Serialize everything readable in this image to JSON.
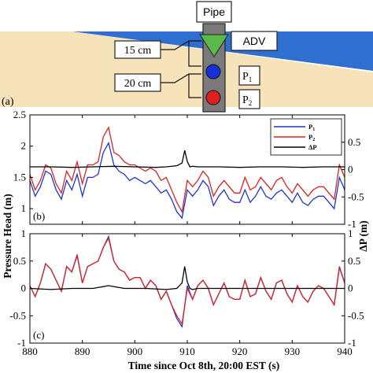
{
  "diagram": {
    "panel_label": "(a)",
    "pipe_label": "Pipe",
    "adv_label": "ADV",
    "dist1_label": "15 cm",
    "dist2_label": "20 cm",
    "p1_label": "P",
    "p1_sub": "1",
    "p2_label": "P",
    "p2_sub": "2",
    "colors": {
      "water": "#2e6fcf",
      "sand": "#f7e3b9",
      "pipe": "#7a7a7a",
      "adv": "#5bb84a",
      "p1": "#1530d8",
      "p2": "#e02020"
    }
  },
  "chart_data": [
    {
      "type": "line",
      "panel_label": "(b)",
      "xlim": [
        880,
        940
      ],
      "ylim": [
        0.75,
        2.5
      ],
      "y2lim": [
        -1,
        1
      ],
      "yticks": [
        "1",
        "1.5",
        "2",
        "2.5"
      ],
      "y2ticks": [
        "-1",
        "-0.5",
        "0",
        "0.5"
      ],
      "legend": "top-right",
      "series": [
        {
          "name": "P",
          "sub": "1",
          "color": "#2233cc",
          "axis": "left",
          "x": [
            880,
            881,
            882,
            883,
            884,
            885,
            886,
            887,
            888,
            889,
            890,
            891,
            892,
            893,
            894,
            895,
            896,
            897,
            898,
            899,
            900,
            901,
            902,
            903,
            904,
            905,
            906,
            907,
            908,
            909,
            910,
            911,
            912,
            913,
            914,
            915,
            916,
            917,
            918,
            919,
            920,
            921,
            922,
            923,
            924,
            925,
            926,
            927,
            928,
            929,
            930,
            931,
            932,
            933,
            934,
            935,
            936,
            937,
            938,
            939,
            940
          ],
          "values": [
            1.45,
            1.2,
            1.35,
            1.6,
            1.55,
            1.3,
            1.15,
            1.45,
            1.3,
            1.55,
            1.2,
            1.5,
            1.5,
            1.55,
            1.9,
            2.05,
            1.7,
            1.6,
            1.55,
            1.45,
            1.5,
            1.45,
            1.4,
            1.45,
            1.35,
            1.25,
            1.3,
            1.15,
            0.95,
            0.85,
            1.3,
            1.2,
            1.3,
            1.45,
            1.35,
            1.05,
            1.2,
            1.3,
            1.15,
            1.1,
            1.1,
            1.3,
            1.1,
            1.2,
            1.35,
            1.2,
            1.15,
            1.25,
            1.3,
            1.2,
            1.1,
            1.25,
            1.1,
            1.05,
            1.15,
            1.2,
            1.2,
            1.1,
            1.0,
            1.5,
            1.3
          ]
        },
        {
          "name": "P",
          "sub": "2",
          "color": "#dd2222",
          "axis": "left",
          "x": [
            880,
            881,
            882,
            883,
            884,
            885,
            886,
            887,
            888,
            889,
            890,
            891,
            892,
            893,
            894,
            895,
            896,
            897,
            898,
            899,
            900,
            901,
            902,
            903,
            904,
            905,
            906,
            907,
            908,
            909,
            910,
            911,
            912,
            913,
            914,
            915,
            916,
            917,
            918,
            919,
            920,
            921,
            922,
            923,
            924,
            925,
            926,
            927,
            928,
            929,
            930,
            931,
            932,
            933,
            934,
            935,
            936,
            937,
            938,
            939,
            940
          ],
          "values": [
            1.55,
            1.3,
            1.45,
            1.7,
            1.65,
            1.4,
            1.25,
            1.6,
            1.45,
            1.75,
            1.4,
            1.7,
            1.7,
            1.75,
            2.15,
            2.3,
            1.9,
            1.85,
            1.75,
            1.7,
            1.7,
            1.65,
            1.6,
            1.65,
            1.6,
            1.45,
            1.5,
            1.3,
            1.1,
            0.95,
            1.45,
            1.35,
            1.45,
            1.6,
            1.5,
            1.2,
            1.35,
            1.45,
            1.35,
            1.25,
            1.25,
            1.5,
            1.3,
            1.35,
            1.5,
            1.4,
            1.3,
            1.45,
            1.5,
            1.35,
            1.25,
            1.4,
            1.3,
            1.2,
            1.3,
            1.35,
            1.35,
            1.25,
            1.15,
            1.7,
            1.5
          ]
        },
        {
          "name": "ΔP",
          "sub": "",
          "color": "#000000",
          "axis": "right",
          "x": [
            880,
            884,
            888,
            892,
            896,
            900,
            904,
            906,
            908,
            909,
            909.5,
            910,
            910.5,
            911,
            912,
            916,
            920,
            924,
            928,
            932,
            936,
            940
          ],
          "values": [
            0.05,
            0.05,
            0.04,
            0.05,
            0.06,
            0.05,
            0.04,
            0.05,
            0.07,
            0.12,
            0.35,
            0.15,
            0.05,
            0.06,
            0.05,
            0.05,
            0.04,
            0.05,
            0.05,
            0.04,
            0.05,
            0.05
          ]
        }
      ]
    },
    {
      "type": "line",
      "panel_label": "(c)",
      "xlim": [
        880,
        940
      ],
      "ylim": [
        -1,
        1
      ],
      "y2lim": [
        -1,
        1
      ],
      "xticks": [
        "880",
        "890",
        "900",
        "910",
        "920",
        "930",
        "940"
      ],
      "yticks": [
        "-1",
        "-0.5",
        "0",
        "0.5",
        "1"
      ],
      "y2ticks": [
        "-1",
        "-0.5",
        "0",
        "0.5",
        "1"
      ],
      "series": [
        {
          "name": "P",
          "sub": "1",
          "color": "#2233cc",
          "axis": "left",
          "x": [
            880,
            881,
            882,
            883,
            884,
            885,
            886,
            887,
            888,
            889,
            890,
            891,
            892,
            893,
            894,
            895,
            896,
            897,
            898,
            899,
            900,
            901,
            902,
            903,
            904,
            905,
            906,
            907,
            908,
            909,
            910,
            911,
            912,
            913,
            914,
            915,
            916,
            917,
            918,
            919,
            920,
            921,
            922,
            923,
            924,
            925,
            926,
            927,
            928,
            929,
            930,
            931,
            932,
            933,
            934,
            935,
            936,
            937,
            938,
            939,
            940
          ],
          "values": [
            0.05,
            -0.15,
            0.1,
            0.45,
            0.35,
            0.15,
            -0.05,
            0.4,
            0.3,
            0.6,
            0.1,
            0.4,
            0.45,
            0.5,
            0.75,
            0.95,
            0.5,
            0.35,
            0.3,
            0.15,
            0.2,
            0.2,
            0.0,
            0.15,
            0.05,
            -0.2,
            -0.05,
            -0.3,
            -0.55,
            -0.7,
            0.05,
            -0.2,
            0.05,
            0.15,
            0.0,
            -0.3,
            -0.1,
            0.1,
            -0.15,
            -0.2,
            -0.2,
            0.15,
            -0.15,
            -0.1,
            0.2,
            -0.05,
            -0.2,
            0.1,
            0.15,
            -0.1,
            -0.25,
            0.05,
            -0.15,
            -0.25,
            -0.05,
            0.05,
            0.0,
            -0.15,
            -0.3,
            0.4,
            0.1
          ]
        },
        {
          "name": "P",
          "sub": "2",
          "color": "#dd2222",
          "axis": "left",
          "x": [
            880,
            881,
            882,
            883,
            884,
            885,
            886,
            887,
            888,
            889,
            890,
            891,
            892,
            893,
            894,
            895,
            896,
            897,
            898,
            899,
            900,
            901,
            902,
            903,
            904,
            905,
            906,
            907,
            908,
            909,
            910,
            911,
            912,
            913,
            914,
            915,
            916,
            917,
            918,
            919,
            920,
            921,
            922,
            923,
            924,
            925,
            926,
            927,
            928,
            929,
            930,
            931,
            932,
            933,
            934,
            935,
            936,
            937,
            938,
            939,
            940
          ],
          "values": [
            0.05,
            -0.15,
            0.1,
            0.45,
            0.35,
            0.15,
            -0.05,
            0.4,
            0.3,
            0.62,
            0.1,
            0.4,
            0.45,
            0.5,
            0.75,
            0.92,
            0.5,
            0.35,
            0.3,
            0.15,
            0.2,
            0.2,
            0.0,
            0.15,
            0.05,
            -0.2,
            -0.05,
            -0.3,
            -0.5,
            -0.65,
            0.0,
            -0.2,
            0.05,
            0.15,
            0.0,
            -0.3,
            -0.1,
            0.1,
            -0.15,
            -0.2,
            -0.2,
            0.15,
            -0.15,
            -0.1,
            0.2,
            -0.05,
            -0.2,
            0.1,
            0.15,
            -0.1,
            -0.25,
            0.05,
            -0.15,
            -0.25,
            -0.05,
            0.05,
            0.0,
            -0.15,
            -0.3,
            0.38,
            0.1
          ]
        },
        {
          "name": "ΔP",
          "sub": "",
          "color": "#000000",
          "axis": "right",
          "x": [
            880,
            884,
            888,
            892,
            895,
            898,
            902,
            906,
            908,
            909,
            909.5,
            910,
            910.5,
            911,
            912,
            916,
            920,
            924,
            928,
            932,
            936,
            940
          ],
          "values": [
            0.0,
            -0.02,
            0.0,
            0.0,
            0.05,
            0.0,
            0.0,
            -0.02,
            0.0,
            0.1,
            0.4,
            0.12,
            0.0,
            -0.02,
            0.0,
            0.0,
            0.0,
            0.0,
            0.0,
            0.0,
            0.0,
            0.0
          ]
        }
      ]
    }
  ],
  "axes": {
    "ylabel": "Pressure Head (m)",
    "y2label": "ΔP (m)",
    "xlabel": "Time since Oct 8th, 20:00 EST (s)"
  }
}
